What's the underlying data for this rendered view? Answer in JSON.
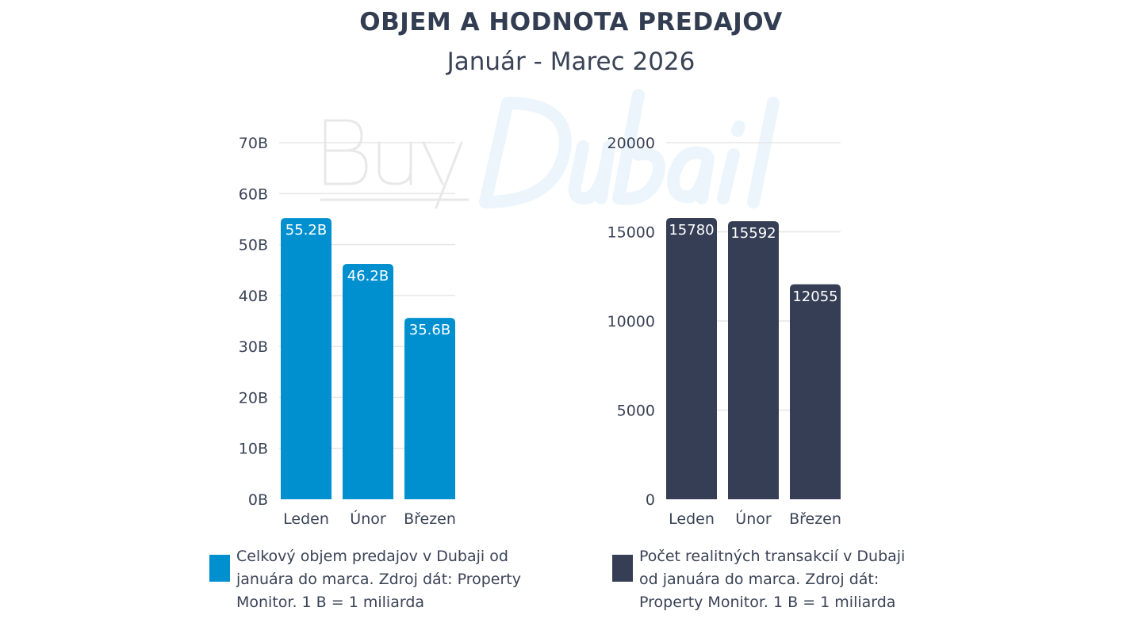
{
  "title": "OBJEM A HODNOTA PREDAJOV",
  "subtitle": "Január - Marec 2026",
  "watermark": {
    "text_1": "Buy",
    "text_2": "Dubai"
  },
  "chart_data": [
    {
      "type": "bar",
      "categories": [
        "Leden",
        "Únor",
        "Březen"
      ],
      "values": [
        55.2,
        46.2,
        35.6
      ],
      "data_labels": [
        "55.2B",
        "46.2B",
        "35.6B"
      ],
      "yticks": [
        "0B",
        "10B",
        "20B",
        "30B",
        "40B",
        "50B",
        "60B",
        "70B"
      ],
      "ylim": [
        0,
        70
      ],
      "grid": true,
      "color": "#0090d0",
      "legend": "Celkový objem predajov v Dubaji od januára do marca. Zdroj dát: Property Monitor. 1 B = 1 miliarda",
      "legend_placement": "bottom"
    },
    {
      "type": "bar",
      "categories": [
        "Leden",
        "Únor",
        "Březen"
      ],
      "values": [
        15780,
        15592,
        12055
      ],
      "data_labels": [
        "15780",
        "15592",
        "12055"
      ],
      "yticks": [
        "0",
        "5000",
        "10000",
        "15000",
        "20000"
      ],
      "ylim": [
        0,
        20000
      ],
      "grid": true,
      "color": "#353e55",
      "legend": "Počet realitných transakcií v Dubaji od januára do marca. Zdroj dát: Property Monitor. 1 B = 1 miliarda",
      "legend_placement": "bottom"
    }
  ]
}
